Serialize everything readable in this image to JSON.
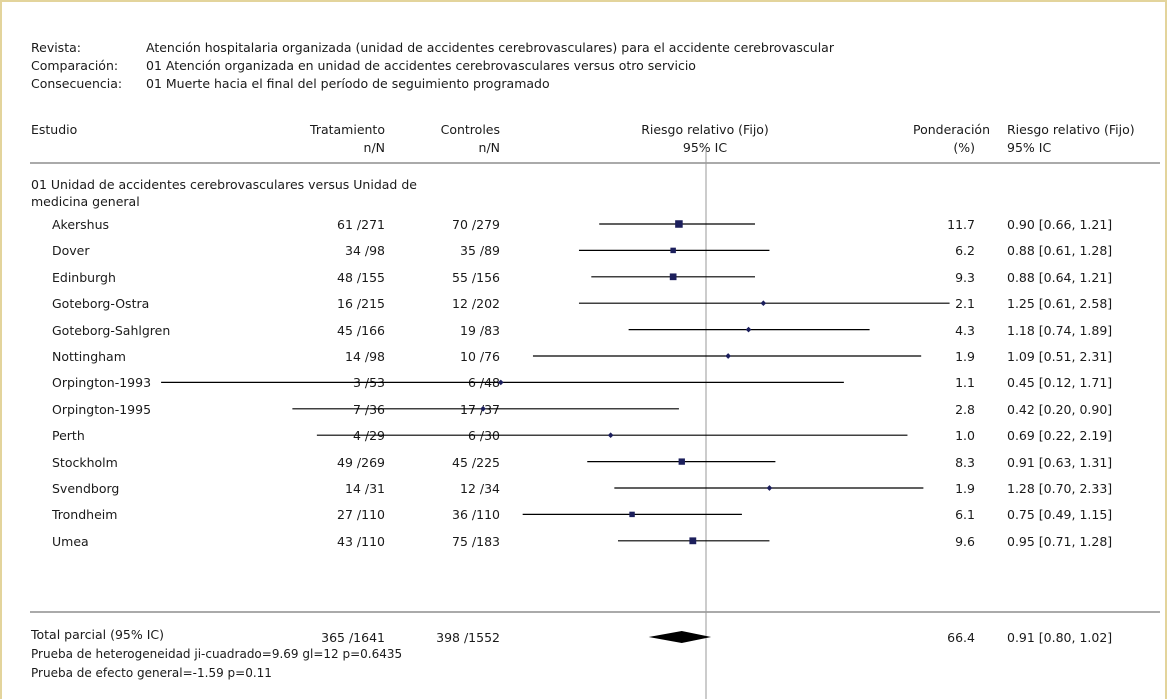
{
  "meta": {
    "review_label": "Revista:",
    "review_value": "Atención hospitalaria organizada (unidad de accidentes cerebrovasculares) para el accidente cerebrovascular",
    "comparison_label": "Comparación:",
    "comparison_value": "01 Atención organizada en unidad de accidentes cerebrovasculares versus otro servicio",
    "outcome_label": "Consecuencia:",
    "outcome_value": "01 Muerte hacia el final del período de seguimiento programado"
  },
  "headers": {
    "study": "Estudio",
    "treatment": "Tratamiento",
    "treatment_sub": "n/N",
    "control": "Controles",
    "control_sub": "n/N",
    "rr": "Riesgo relativo (Fijo)",
    "rr_sub": "95% IC",
    "weight": "Ponderación",
    "weight_sub": "(%)",
    "rr2": "Riesgo relativo (Fijo)",
    "rr2_sub": "95% IC"
  },
  "subgroup": {
    "line1": "01 Unidad de accidentes cerebrovasculares versus Unidad de",
    "line2": "medicina general"
  },
  "total": {
    "label": "Total parcial (95% IC)",
    "treatment": "365 /1641",
    "control": "398 /1552",
    "weight": "66.4",
    "ci_text": "0.91 [0.80, 1.02]",
    "heterogeneity": "Prueba de heterogeneidad ji-cuadrado=9.69 gl=12 p=0.6435",
    "overall_effect": "Prueba de efecto general=-1.59 p=0.11"
  },
  "chart_data": {
    "type": "forest",
    "x_scale": "log",
    "reference_line": 1,
    "studies": [
      {
        "name": "Akershus",
        "treatment": "61 /271",
        "control": "70 /279",
        "rr": 0.9,
        "lo": 0.66,
        "hi": 1.21,
        "weight": 11.7,
        "ci_text": "0.90 [0.66, 1.21]"
      },
      {
        "name": "Dover",
        "treatment": "34 /98",
        "control": "35 /89",
        "rr": 0.88,
        "lo": 0.61,
        "hi": 1.28,
        "weight": 6.2,
        "ci_text": "0.88 [0.61, 1.28]"
      },
      {
        "name": "Edinburgh",
        "treatment": "48 /155",
        "control": "55 /156",
        "rr": 0.88,
        "lo": 0.64,
        "hi": 1.21,
        "weight": 9.3,
        "ci_text": "0.88 [0.64, 1.21]"
      },
      {
        "name": "Goteborg-Ostra",
        "treatment": "16 /215",
        "control": "12 /202",
        "rr": 1.25,
        "lo": 0.61,
        "hi": 2.58,
        "weight": 2.1,
        "ci_text": "1.25 [0.61, 2.58]"
      },
      {
        "name": "Goteborg-Sahlgren",
        "treatment": "45 /166",
        "control": "19 /83",
        "rr": 1.18,
        "lo": 0.74,
        "hi": 1.89,
        "weight": 4.3,
        "ci_text": "1.18 [0.74, 1.89]"
      },
      {
        "name": "Nottingham",
        "treatment": "14 /98",
        "control": "10 /76",
        "rr": 1.09,
        "lo": 0.51,
        "hi": 2.31,
        "weight": 1.9,
        "ci_text": "1.09 [0.51, 2.31]"
      },
      {
        "name": "Orpington-1993",
        "treatment": "3 /53",
        "control": "6 /48",
        "rr": 0.45,
        "lo": 0.12,
        "hi": 1.71,
        "weight": 1.1,
        "ci_text": "0.45 [0.12, 1.71]"
      },
      {
        "name": "Orpington-1995",
        "treatment": "7 /36",
        "control": "17 /37",
        "rr": 0.42,
        "lo": 0.2,
        "hi": 0.9,
        "weight": 2.8,
        "ci_text": "0.42 [0.20, 0.90]"
      },
      {
        "name": "Perth",
        "treatment": "4 /29",
        "control": "6 /30",
        "rr": 0.69,
        "lo": 0.22,
        "hi": 2.19,
        "weight": 1.0,
        "ci_text": "0.69 [0.22, 2.19]"
      },
      {
        "name": "Stockholm",
        "treatment": "49 /269",
        "control": "45 /225",
        "rr": 0.91,
        "lo": 0.63,
        "hi": 1.31,
        "weight": 8.3,
        "ci_text": "0.91 [0.63, 1.31]"
      },
      {
        "name": "Svendborg",
        "treatment": "14 /31",
        "control": "12 /34",
        "rr": 1.28,
        "lo": 0.7,
        "hi": 2.33,
        "weight": 1.9,
        "ci_text": "1.28 [0.70, 2.33]"
      },
      {
        "name": "Trondheim",
        "treatment": "27 /110",
        "control": "36 /110",
        "rr": 0.75,
        "lo": 0.49,
        "hi": 1.15,
        "weight": 6.1,
        "ci_text": "0.75 [0.49, 1.15]"
      },
      {
        "name": "Umea",
        "treatment": "43 /110",
        "control": "75 /183",
        "rr": 0.95,
        "lo": 0.71,
        "hi": 1.28,
        "weight": 9.6,
        "ci_text": "0.95 [0.71, 1.28]"
      }
    ],
    "summary": {
      "rr": 0.91,
      "lo": 0.8,
      "hi": 1.02
    }
  },
  "colors": {
    "marker": "#1c1f5c",
    "line": "#000000",
    "reference": "#9a9a9a",
    "divider": "#555555",
    "frame": "#e3d49c"
  }
}
